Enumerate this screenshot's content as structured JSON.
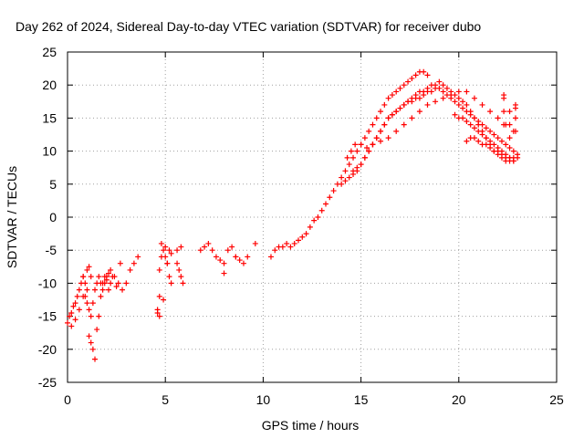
{
  "chart_data": {
    "type": "scatter",
    "title": "Day 262 of 2024, Sidereal Day-to-day VTEC variation (SDTVAR) for receiver dubo",
    "xlabel": "GPS time / hours",
    "ylabel": "SDTVAR / TECUs",
    "xlim": [
      0,
      25
    ],
    "ylim": [
      -25,
      25
    ],
    "xticks": [
      0,
      5,
      10,
      15,
      20,
      25
    ],
    "yticks": [
      -25,
      -20,
      -15,
      -10,
      -5,
      0,
      5,
      10,
      15,
      20,
      25
    ],
    "xtick_labels": [
      "0",
      "5",
      "10",
      "15",
      "20",
      "25"
    ],
    "ytick_labels": [
      "-25",
      "-20",
      "-15",
      "-10",
      "-5",
      "0",
      "5",
      "10",
      "15",
      "20",
      "25"
    ],
    "grid": true,
    "marker": "+",
    "color": "#ff0000",
    "series": [
      {
        "name": "SDTVAR",
        "x": [
          0.0,
          0.1,
          0.2,
          0.3,
          0.4,
          0.5,
          0.6,
          0.7,
          0.8,
          0.9,
          1.0,
          1.1,
          1.2,
          1.3,
          1.4,
          1.5,
          1.6,
          1.7,
          1.8,
          1.9,
          2.0,
          2.1,
          2.2,
          2.4,
          2.6,
          2.8,
          3.0,
          3.2,
          3.4,
          3.6,
          0.2,
          0.4,
          0.6,
          0.8,
          1.0,
          1.1,
          1.2,
          1.3,
          1.4,
          1.5,
          1.6,
          1.7,
          1.8,
          1.9,
          2.0,
          2.1,
          2.2,
          2.3,
          2.5,
          2.7,
          0.8,
          0.9,
          1.0,
          1.1,
          1.2,
          4.6,
          4.7,
          4.8,
          4.9,
          5.0,
          5.1,
          5.2,
          5.3,
          4.7,
          4.9,
          5.1,
          5.3,
          4.8,
          5.0,
          5.2,
          5.6,
          5.7,
          5.8,
          5.9,
          5.6,
          5.8,
          4.6,
          4.7,
          6.8,
          7.0,
          7.2,
          7.4,
          7.6,
          7.8,
          8.0,
          8.2,
          8.4,
          8.6,
          8.8,
          9.0,
          9.2,
          9.6,
          8.0,
          8.6,
          10.4,
          10.6,
          10.8,
          11.0,
          11.2,
          11.4,
          11.6,
          11.8,
          12.0,
          12.2,
          12.4,
          12.6,
          12.8,
          13.0,
          13.2,
          13.4,
          13.6,
          13.8,
          14.0,
          14.2,
          14.4,
          14.6,
          14.8,
          15.0,
          15.2,
          15.4,
          15.6,
          15.8,
          16.0,
          16.2,
          16.4,
          16.6,
          16.8,
          17.0,
          17.2,
          17.4,
          17.6,
          17.8,
          18.0,
          18.2,
          18.4,
          14.0,
          14.2,
          14.4,
          14.6,
          14.8,
          15.0,
          15.2,
          15.4,
          15.6,
          15.8,
          16.0,
          16.2,
          16.4,
          16.6,
          16.8,
          17.0,
          17.2,
          17.4,
          17.6,
          17.8,
          18.0,
          18.2,
          18.4,
          18.6,
          18.8,
          19.0,
          19.2,
          19.4,
          19.6,
          19.8,
          20.0,
          20.2,
          20.4,
          20.6,
          20.8,
          21.0,
          21.2,
          21.4,
          21.6,
          21.8,
          22.0,
          22.2,
          22.4,
          22.6,
          22.8,
          14.6,
          14.8,
          15.0,
          15.2,
          15.4,
          15.6,
          15.8,
          16.0,
          16.2,
          16.4,
          16.6,
          16.8,
          17.0,
          17.2,
          17.4,
          17.6,
          17.8,
          18.0,
          18.2,
          18.4,
          18.6,
          18.8,
          19.0,
          19.2,
          19.4,
          19.6,
          19.8,
          20.0,
          20.2,
          20.4,
          20.6,
          20.8,
          21.0,
          21.2,
          21.4,
          21.6,
          21.8,
          22.0,
          22.2,
          22.4,
          22.6,
          22.8,
          23.0,
          14.3,
          14.5,
          14.7,
          15.0,
          15.3,
          15.6,
          16.0,
          16.4,
          16.8,
          17.2,
          17.6,
          18.0,
          18.4,
          18.8,
          19.2,
          19.6,
          20.0,
          20.4,
          20.8,
          21.2,
          21.6,
          22.0,
          22.4,
          22.8,
          19.8,
          20.0,
          20.2,
          20.4,
          20.6,
          20.8,
          21.0,
          21.2,
          21.4,
          21.6,
          21.8,
          22.0,
          22.2,
          22.4,
          22.6,
          22.8,
          20.4,
          20.6,
          20.8,
          21.0,
          21.2,
          21.4,
          21.6,
          21.8,
          22.0,
          22.2,
          22.4,
          22.6,
          22.8,
          23.0,
          22.3,
          22.3,
          22.3,
          22.3,
          22.6,
          22.6,
          22.6,
          22.9,
          22.9,
          22.9,
          22.9
        ],
        "y": [
          -16,
          -15,
          -14.5,
          -13.5,
          -13,
          -12,
          -11,
          -10,
          -9,
          -12,
          -13,
          -14,
          -15,
          -13,
          -11,
          -10,
          -9,
          -10,
          -11,
          -10,
          -9,
          -8.5,
          -8,
          -9,
          -10,
          -11,
          -10,
          -8,
          -7,
          -6,
          -16.5,
          -15.5,
          -14,
          -12,
          -11,
          -18,
          -19,
          -20,
          -21.5,
          -17,
          -15,
          -12,
          -10,
          -9,
          -9.5,
          -11,
          -10,
          -9,
          -10.5,
          -7,
          -9,
          -10,
          -8,
          -7.5,
          -9,
          -14.5,
          -8,
          -6,
          -5,
          -6,
          -7,
          -9,
          -10,
          -12,
          -12.5,
          -7,
          -5.5,
          -4,
          -4.5,
          -5,
          -7,
          -8,
          -9,
          -10,
          -5,
          -4.5,
          -14,
          -15,
          -5,
          -4.5,
          -4,
          -5,
          -6,
          -6.5,
          -7,
          -5,
          -4.5,
          -6,
          -6.5,
          -7,
          -6,
          -4,
          -8.5,
          -6,
          -6,
          -5,
          -4.5,
          -4.5,
          -4,
          -4.5,
          -4,
          -3.5,
          -3,
          -2.5,
          -1.5,
          -0.5,
          0,
          1,
          2,
          3,
          4,
          5,
          6,
          7,
          8,
          9,
          10,
          11,
          12,
          13,
          14,
          15,
          16,
          17,
          18,
          18.5,
          19,
          19.5,
          20,
          20.5,
          21,
          21.5,
          22,
          22,
          21.5,
          5,
          5.5,
          6,
          6.5,
          7,
          8,
          9,
          10,
          11,
          12,
          13,
          14,
          15,
          15.5,
          16,
          16.5,
          17,
          17.5,
          18,
          18.5,
          19,
          19,
          19.5,
          20,
          20,
          20.5,
          20,
          19.5,
          19,
          18.5,
          18,
          17.5,
          17,
          16,
          15,
          14,
          13,
          12,
          11,
          10,
          9.5,
          9,
          8.5,
          8.5,
          9,
          7,
          7.5,
          8,
          9,
          10,
          11,
          12,
          13,
          14,
          15,
          15.5,
          16,
          16.5,
          17,
          17.5,
          17.5,
          18,
          18,
          18.5,
          19,
          19,
          19.5,
          19.5,
          19,
          18.5,
          18,
          17.5,
          17,
          16.5,
          16,
          15.5,
          15,
          14.5,
          14,
          13.5,
          13,
          12.5,
          12,
          11.5,
          11,
          10.5,
          10,
          9.5,
          9,
          10,
          11,
          11,
          10.5,
          11,
          11.5,
          12,
          13,
          14,
          15,
          16,
          17,
          17.5,
          18,
          18.5,
          19,
          19,
          18,
          17,
          16,
          15,
          14,
          13,
          15.5,
          15,
          15,
          14.5,
          14,
          13.5,
          13,
          12.5,
          12,
          11.5,
          11,
          10.5,
          10,
          9.5,
          9,
          8.5,
          11.5,
          12,
          12,
          11.5,
          11,
          11,
          10.5,
          10,
          10,
          9.5,
          9,
          9,
          8.5,
          9,
          14,
          16,
          18,
          18.5,
          12,
          14,
          16,
          13,
          15,
          17,
          16.5
        ]
      }
    ]
  }
}
